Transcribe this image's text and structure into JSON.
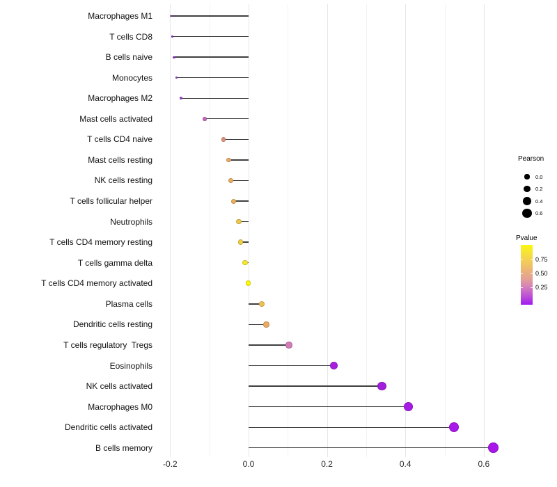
{
  "chart_data": {
    "type": "lollipop",
    "orientation": "horizontal",
    "title": "",
    "xlabel": "",
    "ylabel": "",
    "categories": [
      "Macrophages M1",
      "T cells CD8",
      "B cells naive",
      "Monocytes",
      "Macrophages M2",
      "Mast cells activated",
      "T cells CD4 naive",
      "Mast cells resting",
      "NK cells resting",
      "T cells follicular helper",
      "Neutrophils",
      "T cells CD4 memory resting",
      "T cells gamma delta",
      "T cells CD4 memory activated",
      "Plasma cells",
      "Dendritic cells resting",
      "T cells regulatory  Tregs",
      "Eosinophils",
      "NK cells activated",
      "Macrophages M0",
      "Dendritic cells activated",
      "B cells memory"
    ],
    "series": [
      {
        "name": "Pearson",
        "values": [
          -0.198,
          -0.195,
          -0.19,
          -0.184,
          -0.172,
          -0.112,
          -0.064,
          -0.051,
          -0.045,
          -0.039,
          -0.025,
          -0.02,
          -0.009,
          -0.001,
          0.034,
          0.045,
          0.103,
          0.217,
          0.34,
          0.407,
          0.524,
          0.625
        ]
      }
    ],
    "point_colors": [
      "#8A2BBE",
      "#8E2DC2",
      "#9434C6",
      "#9C3DC9",
      "#A246CB",
      "#C468BE",
      "#DD9179",
      "#E9AB67",
      "#EAAE61",
      "#ECB25A",
      "#F0C74E",
      "#F2CF44",
      "#F8E92C",
      "#FDF908",
      "#EFC257",
      "#EAAC64",
      "#D37CB8",
      "#A81FE0",
      "#A21FDE",
      "#A61CE6",
      "#A819EA",
      "#A916EC"
    ],
    "xlim": [
      -0.222,
      0.641
    ],
    "x_tick_labels": [
      "-0.2",
      "0.0",
      "0.2",
      "0.4",
      "0.6"
    ],
    "x_tick_values": [
      -0.2,
      0.0,
      0.2,
      0.4,
      0.6
    ],
    "x_minor_tick_values": [
      -0.1,
      0.1,
      0.3,
      0.5
    ],
    "grid": "vertical-only",
    "legend_position": "right",
    "size_legend": {
      "title": "Pearson",
      "labels": [
        "0.0",
        "0.2",
        "0.4",
        "0.6"
      ],
      "values": [
        0.0,
        0.2,
        0.4,
        0.6
      ]
    },
    "color_legend": {
      "title": "Pvalue",
      "labels": [
        "0.75",
        "0.50",
        "0.25"
      ],
      "gradient_top_to_bottom": [
        "#FBF70E",
        "#F6E13B",
        "#F2CB5A",
        "#ECB377",
        "#E3A096",
        "#D37CBE",
        "#BB50D6",
        "#A01BF0"
      ]
    },
    "colors": {
      "stem": "#3f3f3f",
      "grid_major": "#E7E7E7",
      "grid_minor": "#F3F3F3",
      "label_text": "#111111",
      "axis_text": "#2b2b2b"
    }
  }
}
